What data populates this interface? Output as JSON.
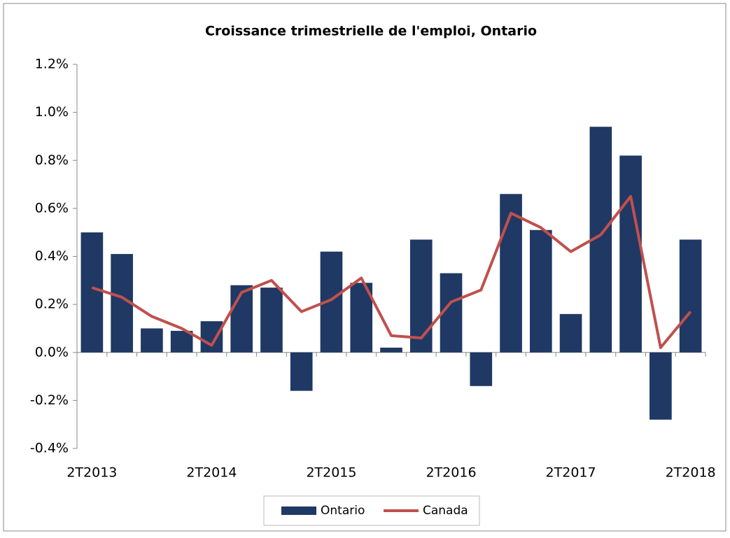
{
  "chart_data": {
    "type": "bar_line",
    "title": "Croissance trimestrielle de l'emploi, Ontario",
    "categories": [
      "2T2013",
      null,
      null,
      null,
      "2T2014",
      null,
      null,
      null,
      "2T2015",
      null,
      null,
      null,
      "2T2016",
      null,
      null,
      null,
      "2T2017",
      null,
      null,
      null,
      "2T2018"
    ],
    "series": [
      {
        "name": "Ontario",
        "type": "bar",
        "color": "#1f3864",
        "values": [
          0.5,
          0.41,
          0.1,
          0.09,
          0.13,
          0.28,
          0.27,
          -0.16,
          0.42,
          0.29,
          0.02,
          0.47,
          0.33,
          -0.14,
          0.66,
          0.51,
          0.16,
          0.94,
          0.82,
          -0.28,
          0.47
        ]
      },
      {
        "name": "Canada",
        "type": "line",
        "color": "#c0504d",
        "values": [
          0.27,
          0.23,
          0.15,
          0.1,
          0.03,
          0.25,
          0.3,
          0.17,
          0.22,
          0.31,
          0.07,
          0.06,
          0.21,
          0.26,
          0.58,
          0.52,
          0.42,
          0.49,
          0.65,
          0.02,
          0.17
        ]
      }
    ],
    "ylim": [
      -0.4,
      1.2
    ],
    "yticks": [
      {
        "value": -0.4,
        "label": "-0.4%"
      },
      {
        "value": -0.2,
        "label": "-0.2%"
      },
      {
        "value": 0,
        "label": "0.0%"
      },
      {
        "value": 0.2,
        "label": "0.2%"
      },
      {
        "value": 0.4,
        "label": "0.4%"
      },
      {
        "value": 0.6,
        "label": "0.6%"
      },
      {
        "value": 0.8,
        "label": "0.8%"
      },
      {
        "value": 1.0,
        "label": "1.0%"
      },
      {
        "value": 1.2,
        "label": "1.2%"
      }
    ],
    "legend": "bottom"
  }
}
